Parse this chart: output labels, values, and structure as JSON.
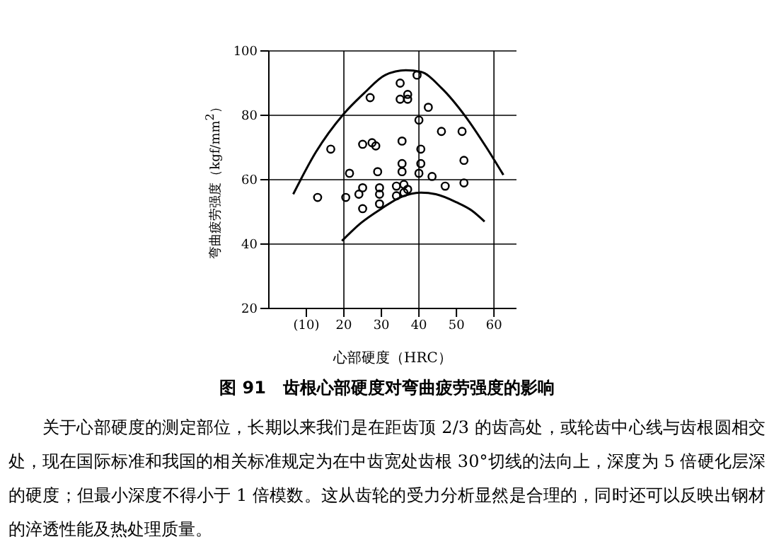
{
  "chart_data": {
    "type": "scatter",
    "title": "图 91　齿根心部硬度对弯曲疲劳强度的影响",
    "xlabel": "心部硬度（HRC）",
    "ylabel": "弯曲疲劳强度（kgf/mm$^{2}$）",
    "xlim": [
      0,
      66
    ],
    "xticks": [
      {
        "value": 10,
        "label": "(10)"
      },
      20,
      30,
      40,
      50,
      60
    ],
    "ylim": [
      20,
      100
    ],
    "yticks": [
      20,
      40,
      60,
      80,
      100
    ],
    "grid": "y",
    "ref_lines": [
      {
        "axis": "x",
        "value": 20
      },
      {
        "axis": "x",
        "value": 40
      },
      {
        "axis": "x",
        "value": 60
      }
    ],
    "marker": "circle",
    "legend": false,
    "series": [
      {
        "color": "#000000",
        "x": [
          13,
          16.5,
          20.5,
          21.5,
          24,
          25,
          25,
          25,
          27,
          27.5,
          28.5,
          29,
          29.5,
          29.5,
          29.5,
          34,
          34,
          35,
          35,
          35.5,
          35.5,
          35.5,
          36,
          36,
          37,
          37,
          37,
          39.5,
          40,
          40,
          40.5,
          40.5,
          42.5,
          43.5,
          46,
          47,
          51.5,
          52,
          52
        ],
        "values": [
          54.5,
          69.5,
          54.5,
          62,
          55.5,
          71,
          57.5,
          51,
          85.5,
          71.5,
          70.5,
          62.5,
          57.5,
          55.5,
          52.5,
          55,
          58,
          90,
          85,
          72,
          65,
          62.5,
          58.5,
          56,
          86.5,
          85,
          57,
          92.5,
          78.5,
          62,
          69.5,
          65,
          82.5,
          61,
          75,
          58,
          75,
          66,
          59
        ]
      },
      {
        "type": "line",
        "color": "#000000",
        "marker": "none",
        "x": [
          6.5,
          12.5,
          20,
          25.5,
          31,
          36.5,
          40.5,
          46,
          52.5,
          58,
          62.5
        ],
        "values": [
          55.5,
          68.5,
          80.5,
          87,
          92.5,
          94,
          93.5,
          88.5,
          79.5,
          70,
          61.5
        ]
      },
      {
        "type": "line",
        "color": "#000000",
        "marker": "none",
        "x": [
          19.5,
          24.5,
          30,
          35,
          40.5,
          44.5,
          50,
          54,
          57.5
        ],
        "values": [
          41,
          46.5,
          51,
          54.5,
          56,
          55.5,
          53,
          50.5,
          47
        ]
      }
    ],
    "annotations": [
      "关于心部硬度的测定部位，长期以来我们是在距齿顶 2/3 的齿高处，或轮齿中心线与齿根圆相交处，现在国际标准和我国的相关标准规定为在中齿宽处齿根 30°切线的法向上，深度为 5 倍硬化层深的硬度；但最小深度不得小于 1 倍模数。这从齿轮的受力分析显然是合理的，同时还可以反映出钢材的淬透性能及热处理质量。"
    ]
  }
}
